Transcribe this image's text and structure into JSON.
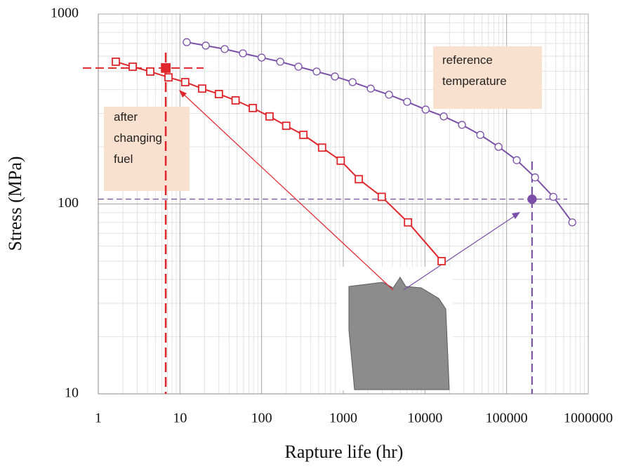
{
  "chart_data": {
    "type": "scatter",
    "log_x": true,
    "log_y": true,
    "xlabel": "Rapture life (hr)",
    "ylabel": "Stress (MPa)",
    "xlim": [
      1,
      1000000
    ],
    "ylim": [
      10,
      1000
    ],
    "xticks": [
      1,
      10,
      100,
      1000,
      10000,
      100000,
      1000000
    ],
    "yticks": [
      10,
      100,
      1000
    ],
    "grid": true,
    "minor_grid": true,
    "series": [
      {
        "color": "#e0262a",
        "marker": "square",
        "line": true,
        "x": [
          1.64,
          2.64,
          4.33,
          7.24,
          11.6,
          18.7,
          30,
          48,
          78,
          125,
          200,
          325,
          550,
          930,
          1550,
          2960,
          6200,
          16000
        ],
        "values": [
          561,
          528,
          498,
          464,
          438,
          405,
          379,
          351,
          320,
          289,
          258,
          231,
          198,
          169,
          135,
          109,
          80,
          50
        ]
      },
      {
        "color": "#7b4fa8",
        "marker": "circle",
        "line": true,
        "x": [
          12.1,
          20.7,
          35.3,
          59,
          100,
          169,
          282,
          472,
          790,
          1300,
          2170,
          3630,
          6050,
          10200,
          17000,
          28400,
          47600,
          79600,
          133000,
          223000,
          373000,
          637000
        ],
        "values": [
          711,
          682,
          654,
          621,
          590,
          561,
          528,
          498,
          469,
          438,
          405,
          376,
          345,
          314,
          289,
          261,
          231,
          200,
          170,
          138,
          109,
          80
        ]
      },
      {
        "color": "#e0262a",
        "marker": "filled-square",
        "line": false,
        "x": [
          6.7
        ],
        "values": [
          520
        ]
      },
      {
        "color": "#7b4fa8",
        "marker": "filled-circle",
        "line": false,
        "x": [
          205000
        ],
        "values": [
          106
        ]
      }
    ],
    "annotations": [
      {
        "lines": [
          "after",
          "changing",
          "fuel"
        ]
      },
      {
        "lines": [
          "reference",
          "temperature"
        ]
      }
    ]
  }
}
